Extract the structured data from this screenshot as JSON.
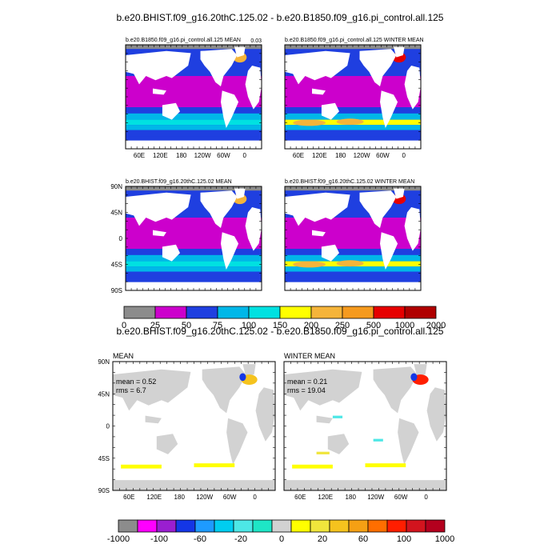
{
  "figure": {
    "top_title": "b.e20.BHIST.f09_g16.20thC.125.02 - b.e20.B1850.f09_g16.pi_control.all.125",
    "diff_title": "b.e20.BHIST.f09_g16.20thC.125.02 - b.e20.B1850.f09_g16.pi_control.all.125"
  },
  "chart_data": [
    {
      "type": "heatmap",
      "title": "b.e20.B1850.f09_g16.pi_control.all.125 MEAN",
      "corner_label": "0.03",
      "x_ticks": [
        "60E",
        "120E",
        "180",
        "120W",
        "60W",
        "0"
      ],
      "y_ticks": []
    },
    {
      "type": "heatmap",
      "title": "b.e20.B1850.f09_g16.pi_control.all.125 WINTER MEAN",
      "corner_label": "",
      "x_ticks": [
        "60E",
        "120E",
        "180",
        "120W",
        "60W",
        "0"
      ],
      "y_ticks": []
    },
    {
      "type": "heatmap",
      "title": "b.e20.BHIST.f09_g16.20thC.125.02 MEAN",
      "x_ticks": [],
      "y_ticks": [
        "90N",
        "45N",
        "0",
        "45S",
        "90S"
      ]
    },
    {
      "type": "heatmap",
      "title": "b.e20.BHIST.f09_g16.20thC.125.02 WINTER MEAN",
      "x_ticks": [],
      "y_ticks": []
    },
    {
      "type": "heatmap",
      "title": "MEAN",
      "annotations": [
        "mean = 0.52",
        "rms = 6.7"
      ],
      "x_ticks": [
        "60E",
        "120E",
        "180",
        "120W",
        "60W",
        "0"
      ],
      "y_ticks": [
        "90N",
        "45N",
        "0",
        "45S",
        "90S"
      ]
    },
    {
      "type": "heatmap",
      "title": "WINTER MEAN",
      "annotations": [
        "mean = 0.21",
        "rms = 19.04"
      ],
      "x_ticks": [
        "60E",
        "120E",
        "180",
        "120W",
        "60W",
        "0"
      ],
      "y_ticks": []
    }
  ],
  "colorbar_top": {
    "labels": [
      "0",
      "25",
      "50",
      "75",
      "100",
      "150",
      "200",
      "250",
      "500",
      "1000",
      "2000"
    ],
    "colors": [
      "#8c8c8c",
      "#cc00cc",
      "#1f3fe0",
      "#00b7e8",
      "#00e1e1",
      "#ffff00",
      "#f5b43a",
      "#f59a1e",
      "#e60000",
      "#b00000"
    ]
  },
  "colorbar_bottom": {
    "labels": [
      "-1000",
      "-100",
      "-60",
      "-20",
      "0",
      "20",
      "60",
      "100",
      "1000"
    ],
    "colors": [
      "#8c8c8c",
      "#ff00ff",
      "#9a1fd0",
      "#1436e6",
      "#1e9bff",
      "#00cdf0",
      "#4de7e6",
      "#1ee6c6",
      "#d2d2d2",
      "#ffff00",
      "#f0e53c",
      "#f5c31e",
      "#f5a014",
      "#ff6e00",
      "#ff1e00",
      "#d2141e",
      "#b4001e"
    ]
  },
  "palettes": {
    "land": "#ffffff",
    "diff_land": "#d2d2d2",
    "ice": "#8c8c8c",
    "frame": "#000000"
  }
}
